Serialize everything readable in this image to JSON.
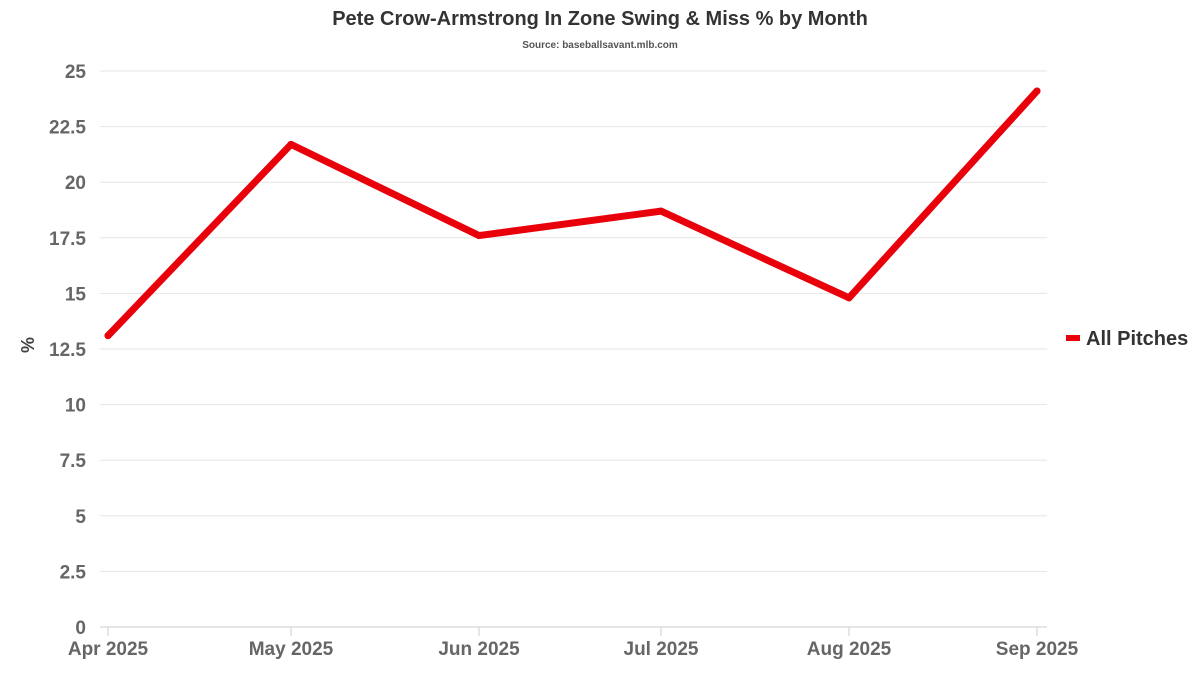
{
  "chart_data": {
    "type": "line",
    "title": "Pete Crow-Armstrong In Zone Swing & Miss % by Month",
    "subtitle": "Source: baseballsavant.mlb.com",
    "xlabel": "",
    "ylabel": "%",
    "categories": [
      "Apr 2025",
      "May 2025",
      "Jun 2025",
      "Jul 2025",
      "Aug 2025",
      "Sep 2025"
    ],
    "series": [
      {
        "name": "All Pitches",
        "values": [
          13.1,
          21.7,
          17.6,
          18.7,
          14.8,
          24.1
        ],
        "color": "#e8000b"
      }
    ],
    "ylim": [
      0,
      25
    ],
    "yticks": [
      "0",
      "2.5",
      "5",
      "7.5",
      "10",
      "12.5",
      "15",
      "17.5",
      "20",
      "22.5",
      "25"
    ],
    "grid": true,
    "legend_position": "right"
  }
}
